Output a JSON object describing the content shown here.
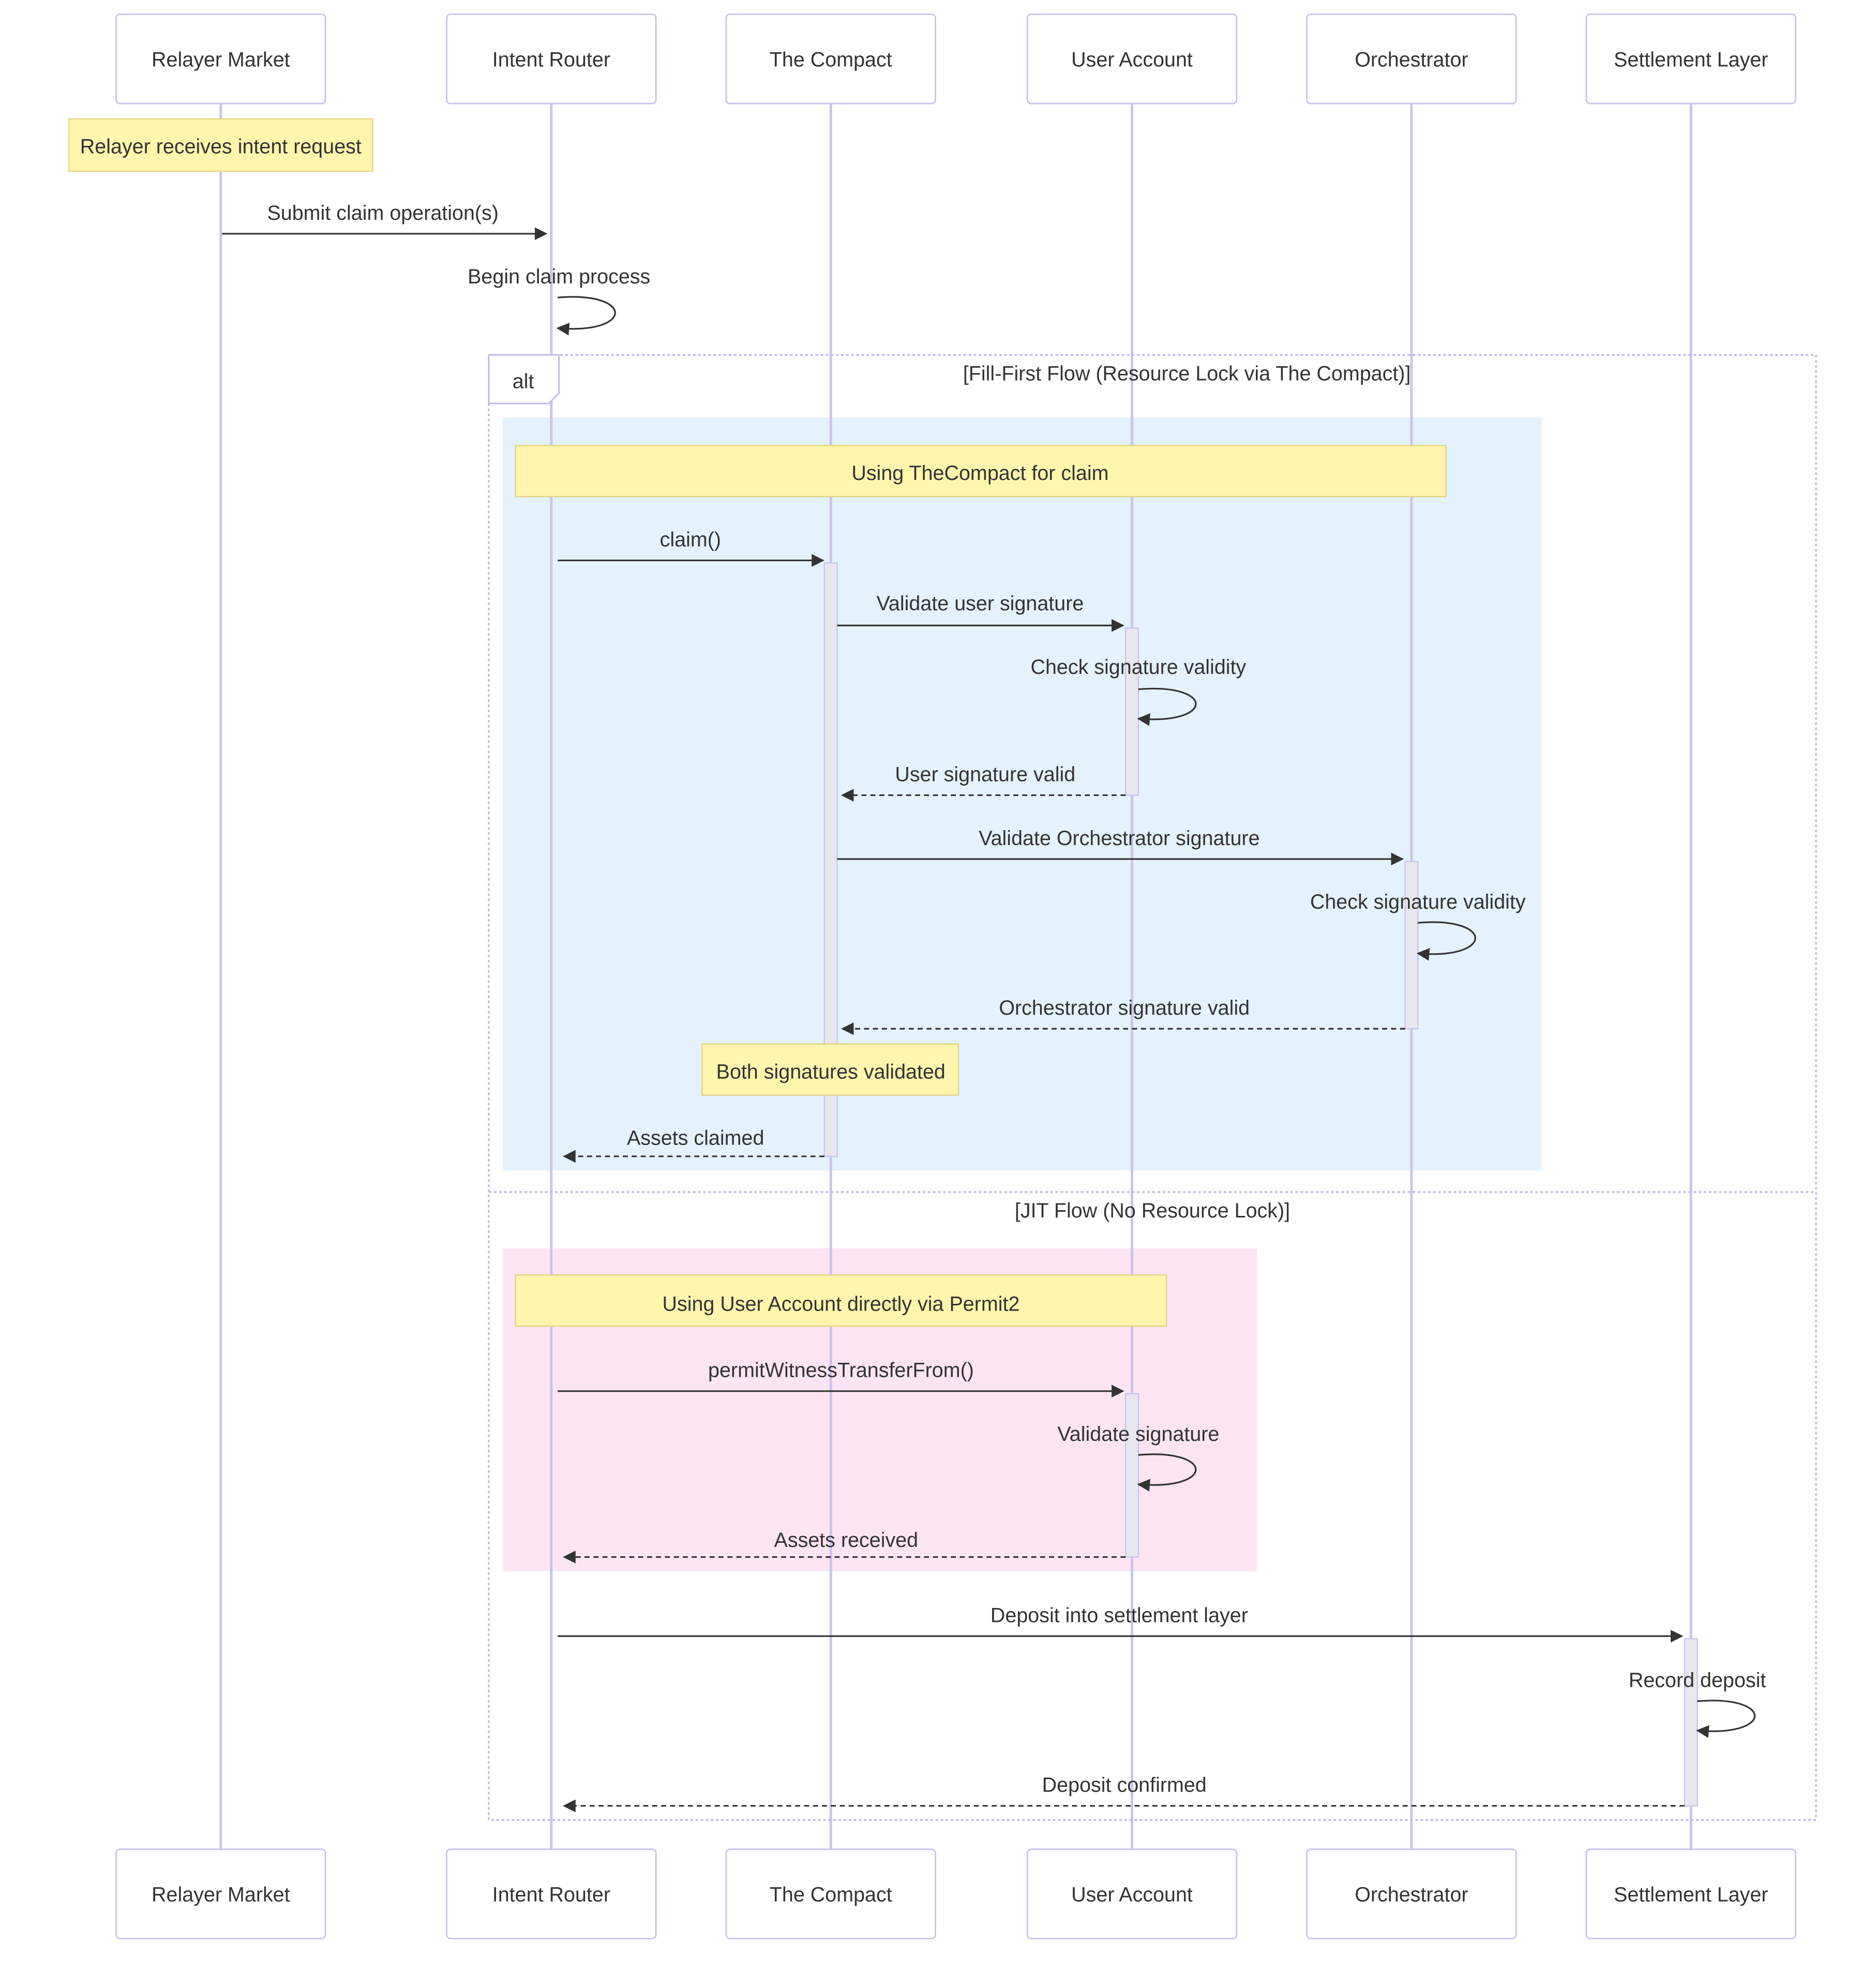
{
  "participants": [
    "Relayer Market",
    "Intent Router",
    "The Compact",
    "User Account",
    "Orchestrator",
    "Settlement Layer"
  ],
  "notes": {
    "relayer_receives": "Relayer receives intent request",
    "using_compact": "Using TheCompact for claim",
    "both_validated": "Both signatures validated",
    "using_permit2": "Using User Account directly via Permit2"
  },
  "alt": {
    "keyword": "alt",
    "section1": "[Fill-First Flow (Resource Lock via The Compact)]",
    "section2": "[JIT Flow (No Resource Lock)]",
    "section1_color": "#e3f2fd",
    "section2_color": "#fce4f3"
  },
  "messages": {
    "submit": "Submit claim operation(s)",
    "begin": "Begin claim process",
    "claim": "claim()",
    "validate_user": "Validate user signature",
    "check_user": "Check signature validity",
    "user_valid": "User signature valid",
    "validate_orch": "Validate Orchestrator signature",
    "check_orch": "Check signature validity",
    "orch_valid": "Orchestrator signature valid",
    "assets_claimed": "Assets claimed",
    "permit": "permitWitnessTransferFrom()",
    "validate_sig": "Validate signature",
    "assets_received": "Assets received",
    "deposit": "Deposit into settlement layer",
    "record": "Record deposit",
    "deposit_confirmed": "Deposit confirmed"
  }
}
